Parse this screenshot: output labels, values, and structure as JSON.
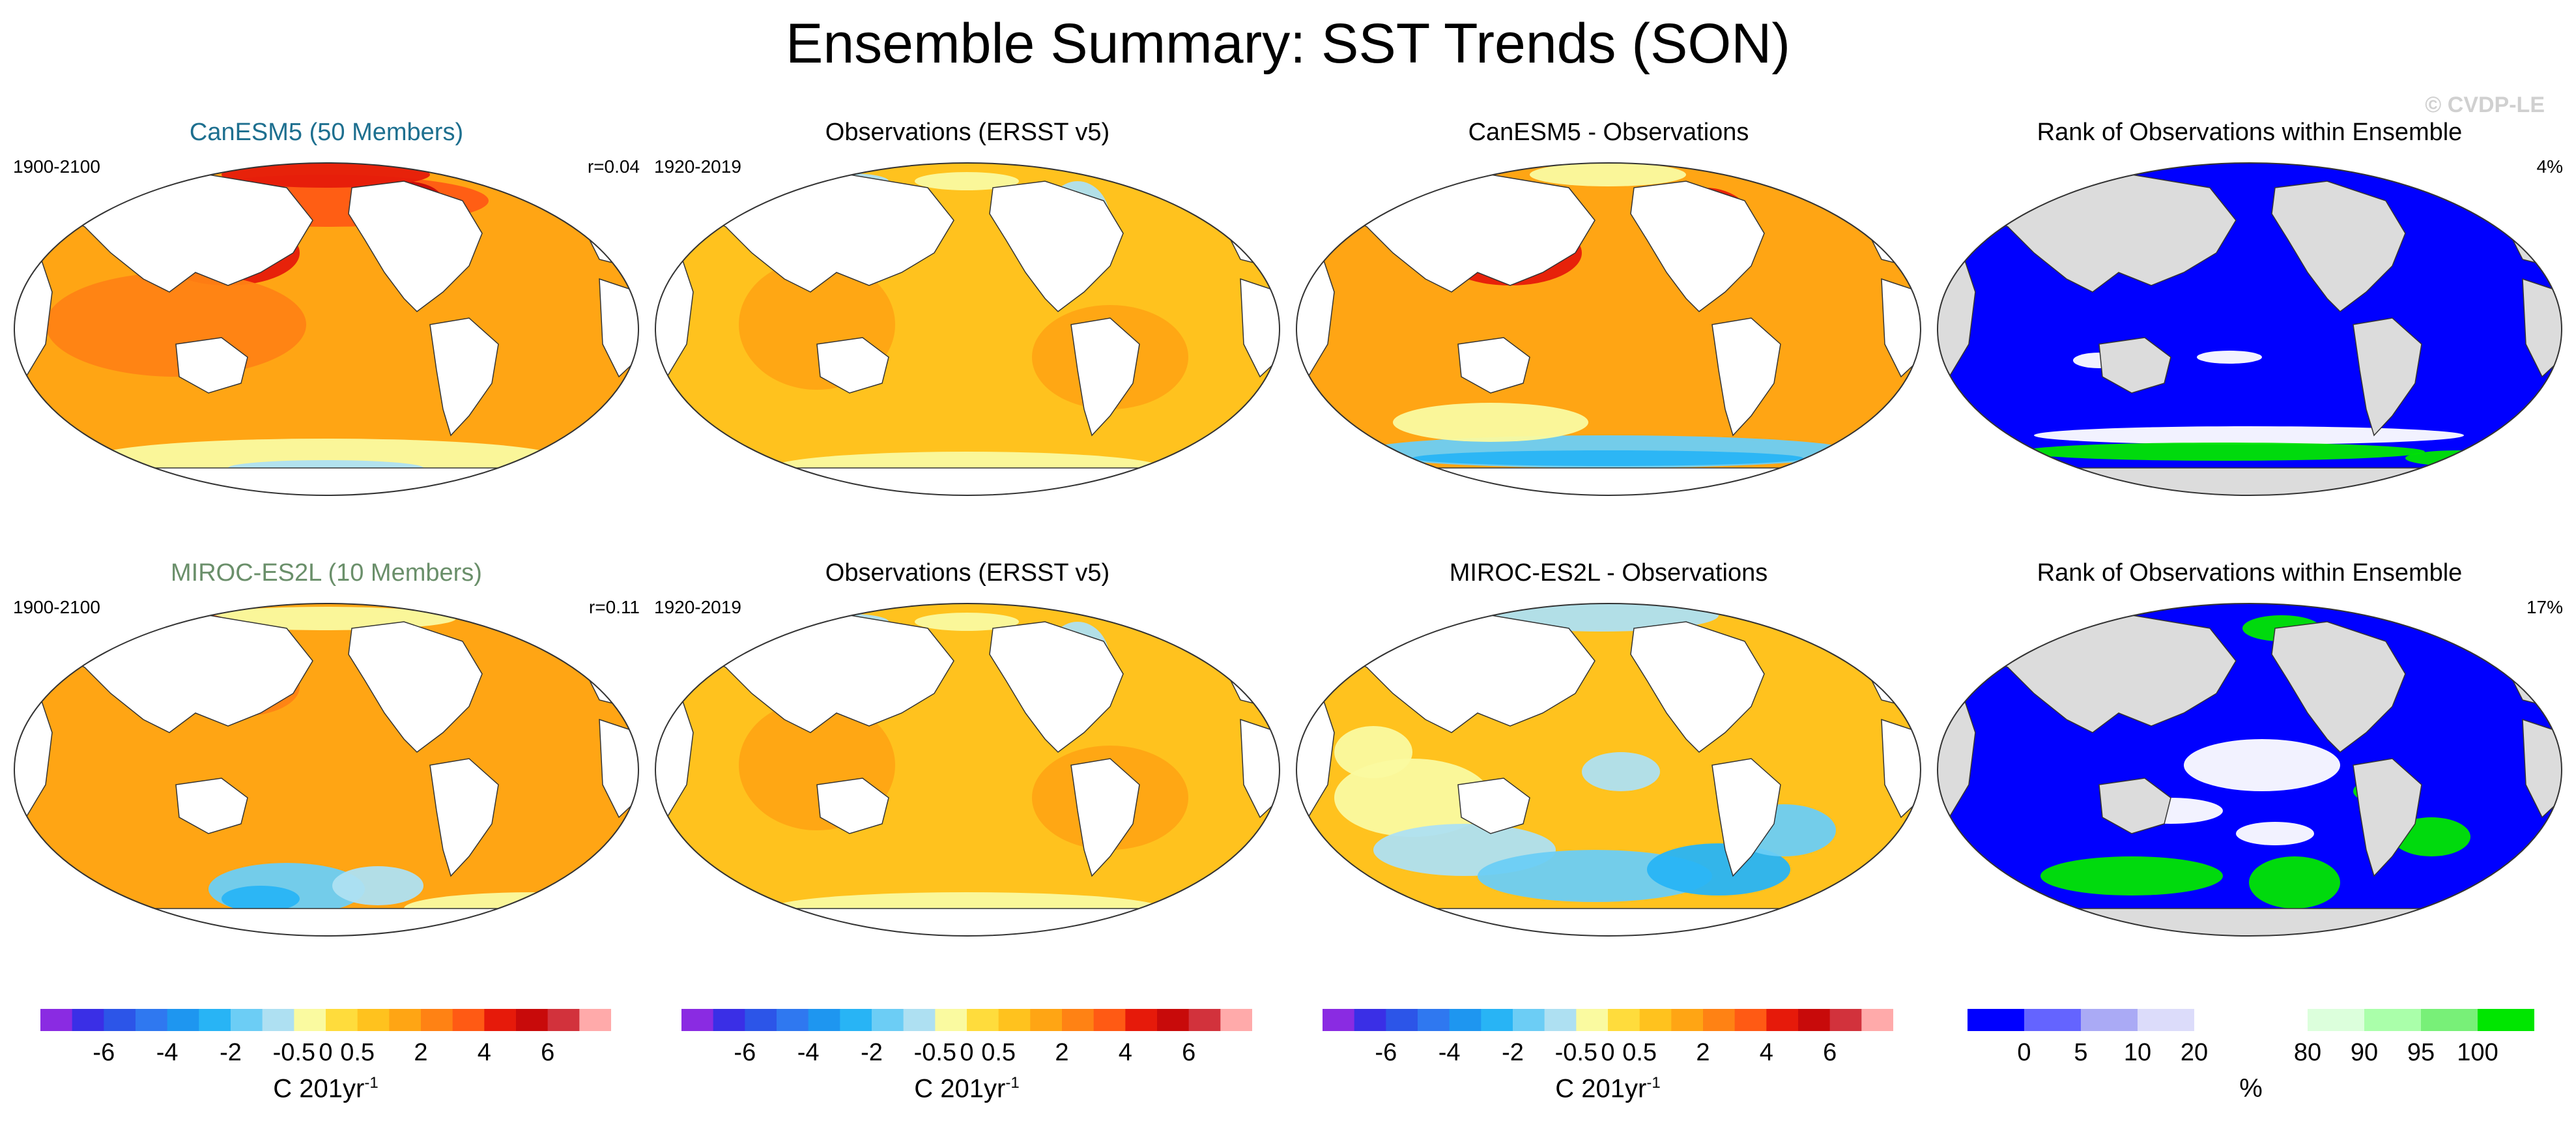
{
  "title": "Ensemble Summary: SST Trends (SON)",
  "watermark": "© CVDP-LE",
  "colors": {
    "model1_title": "#1d6f8f",
    "model2_title": "#6a8f6a",
    "land_white": "#ffffff",
    "land_gray": "#dcdcdc",
    "coast": "#333333"
  },
  "rows": [
    {
      "panels": [
        {
          "kind": "model",
          "title": "CanESM5 (50 Members)",
          "left_label": "1900-2100",
          "right_label": "r=0.04",
          "pattern": "model_warm_strong"
        },
        {
          "kind": "obs",
          "title": "Observations (ERSST v5)",
          "left_label": "1920-2019",
          "right_label": "",
          "pattern": "obs"
        },
        {
          "kind": "diff",
          "title": "CanESM5 - Observations",
          "left_label": "",
          "right_label": "",
          "pattern": "diff_strong"
        },
        {
          "kind": "rank",
          "title": "Rank of Observations within Ensemble",
          "left_label": "",
          "right_label": "4%",
          "pattern": "rank_low"
        }
      ]
    },
    {
      "panels": [
        {
          "kind": "model",
          "title": "MIROC-ES2L (10 Members)",
          "left_label": "1900-2100",
          "right_label": "r=0.11",
          "pattern": "model_warm_weak"
        },
        {
          "kind": "obs",
          "title": "Observations (ERSST v5)",
          "left_label": "1920-2019",
          "right_label": "",
          "pattern": "obs"
        },
        {
          "kind": "diff",
          "title": "MIROC-ES2L - Observations",
          "left_label": "",
          "right_label": "",
          "pattern": "diff_weak"
        },
        {
          "kind": "rank",
          "title": "Rank of Observations within Ensemble",
          "left_label": "",
          "right_label": "17%",
          "pattern": "rank_mid"
        }
      ]
    }
  ],
  "colorbars": [
    {
      "type": "trend",
      "colors": [
        "#8a2be2",
        "#3a2fe6",
        "#2c55e8",
        "#2f78f0",
        "#1e96f0",
        "#28b4f5",
        "#6ccdf5",
        "#aee0f2",
        "#fafaa0",
        "#ffdc3c",
        "#ffc21e",
        "#ffa514",
        "#ff8214",
        "#ff5a14",
        "#e61a0a",
        "#c80a0a",
        "#d2323c",
        "#ffaaaa"
      ],
      "ticks": [
        "-6",
        "-4",
        "-2",
        "-0.5",
        "0",
        "0.5",
        "2",
        "4",
        "6"
      ],
      "unit_main": "C 201yr",
      "unit_sup": "-1"
    },
    {
      "type": "trend",
      "colors": [
        "#8a2be2",
        "#3a2fe6",
        "#2c55e8",
        "#2f78f0",
        "#1e96f0",
        "#28b4f5",
        "#6ccdf5",
        "#aee0f2",
        "#fafaa0",
        "#ffdc3c",
        "#ffc21e",
        "#ffa514",
        "#ff8214",
        "#ff5a14",
        "#e61a0a",
        "#c80a0a",
        "#d2323c",
        "#ffaaaa"
      ],
      "ticks": [
        "-6",
        "-4",
        "-2",
        "-0.5",
        "0",
        "0.5",
        "2",
        "4",
        "6"
      ],
      "unit_main": "C 201yr",
      "unit_sup": "-1"
    },
    {
      "type": "trend",
      "colors": [
        "#8a2be2",
        "#3a2fe6",
        "#2c55e8",
        "#2f78f0",
        "#1e96f0",
        "#28b4f5",
        "#6ccdf5",
        "#aee0f2",
        "#fafaa0",
        "#ffdc3c",
        "#ffc21e",
        "#ffa514",
        "#ff8214",
        "#ff5a14",
        "#e61a0a",
        "#c80a0a",
        "#d2323c",
        "#ffaaaa"
      ],
      "ticks": [
        "-6",
        "-4",
        "-2",
        "-0.5",
        "0",
        "0.5",
        "2",
        "4",
        "6"
      ],
      "unit_main": "C 201yr",
      "unit_sup": "-1"
    },
    {
      "type": "rank",
      "colors": [
        "#0000ff",
        "#6464ff",
        "#aaaaf5",
        "#dcdcfa",
        "#ffffff",
        "#ffffff",
        "#dcffdc",
        "#aaffaa",
        "#78f078",
        "#00e600"
      ],
      "ticks": [
        "0",
        "5",
        "10",
        "20",
        "80",
        "90",
        "95",
        "100"
      ],
      "unit_main": "%",
      "unit_sup": ""
    }
  ],
  "chart_data": [
    {
      "type": "heatmap",
      "title": "CanESM5 (50 Members)",
      "period": "1900-2100",
      "pattern_correlation": "r=0.04",
      "variable": "SST trend SON",
      "units": "C 201yr-1",
      "levels": [
        -6,
        -4,
        -2,
        -0.5,
        0,
        0.5,
        2,
        4,
        6
      ]
    },
    {
      "type": "heatmap",
      "title": "Observations (ERSST v5)",
      "period": "1920-2019",
      "variable": "SST trend SON",
      "units": "C 201yr-1",
      "levels": [
        -6,
        -4,
        -2,
        -0.5,
        0,
        0.5,
        2,
        4,
        6
      ]
    },
    {
      "type": "heatmap",
      "title": "CanESM5 - Observations",
      "variable": "SST trend difference",
      "units": "C 201yr-1",
      "levels": [
        -6,
        -4,
        -2,
        -0.5,
        0,
        0.5,
        2,
        4,
        6
      ]
    },
    {
      "type": "heatmap",
      "title": "Rank of Observations within Ensemble",
      "summary": "4%",
      "units": "%",
      "levels": [
        0,
        5,
        10,
        20,
        80,
        90,
        95,
        100
      ]
    },
    {
      "type": "heatmap",
      "title": "MIROC-ES2L (10 Members)",
      "period": "1900-2100",
      "pattern_correlation": "r=0.11",
      "variable": "SST trend SON",
      "units": "C 201yr-1",
      "levels": [
        -6,
        -4,
        -2,
        -0.5,
        0,
        0.5,
        2,
        4,
        6
      ]
    },
    {
      "type": "heatmap",
      "title": "Observations (ERSST v5)",
      "period": "1920-2019",
      "variable": "SST trend SON",
      "units": "C 201yr-1",
      "levels": [
        -6,
        -4,
        -2,
        -0.5,
        0,
        0.5,
        2,
        4,
        6
      ]
    },
    {
      "type": "heatmap",
      "title": "MIROC-ES2L - Observations",
      "variable": "SST trend difference",
      "units": "C 201yr-1",
      "levels": [
        -6,
        -4,
        -2,
        -0.5,
        0,
        0.5,
        2,
        4,
        6
      ]
    },
    {
      "type": "heatmap",
      "title": "Rank of Observations within Ensemble",
      "summary": "17%",
      "units": "%",
      "levels": [
        0,
        5,
        10,
        20,
        80,
        90,
        95,
        100
      ]
    }
  ]
}
